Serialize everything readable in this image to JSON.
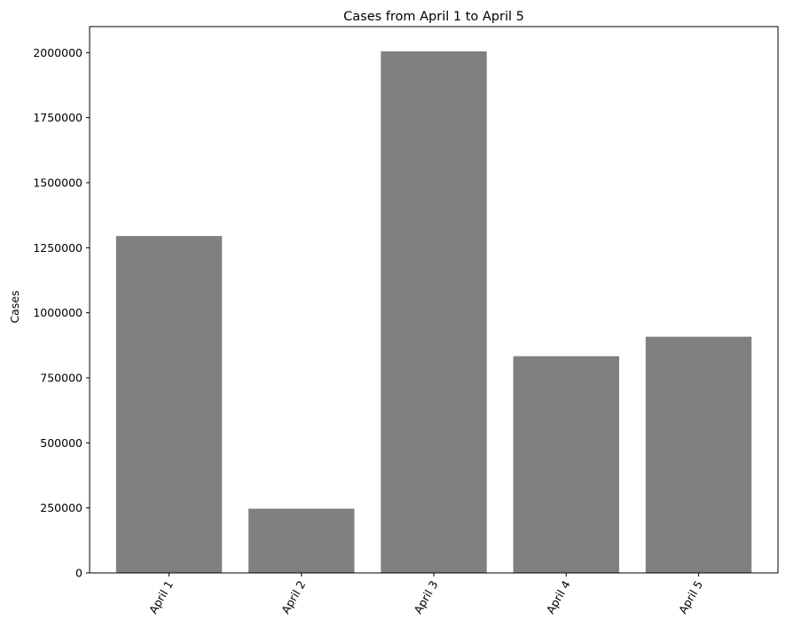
{
  "chart_data": {
    "type": "bar",
    "title": "Cases from April 1 to April 5",
    "xlabel": "",
    "ylabel": "Cases",
    "categories": [
      "April 1",
      "April 2",
      "April 3",
      "April 4",
      "April 5"
    ],
    "values": [
      1295000,
      247000,
      2005000,
      833000,
      908000
    ],
    "ylim": [
      0,
      2100000
    ],
    "yticks": [
      0,
      250000,
      500000,
      750000,
      1000000,
      1250000,
      1500000,
      1750000,
      2000000
    ],
    "ytick_labels": [
      "0",
      "250000",
      "500000",
      "750000",
      "1000000",
      "1250000",
      "1500000",
      "1750000",
      "2000000"
    ],
    "grid": false,
    "legend": "none",
    "bar_color": "#808080",
    "x_tick_rotation": 60
  }
}
